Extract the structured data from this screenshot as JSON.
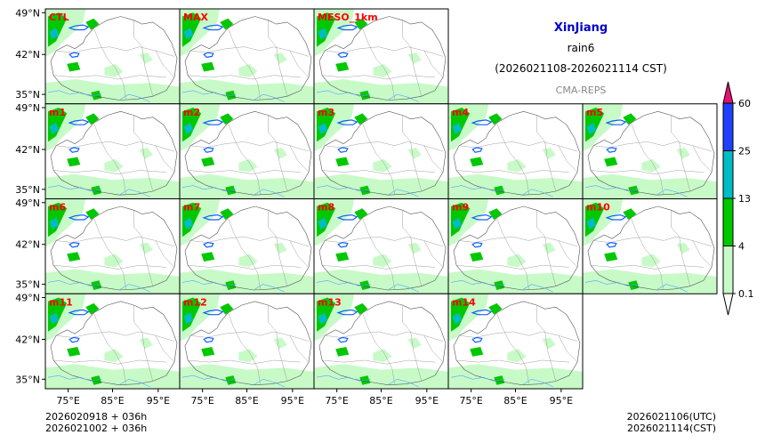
{
  "chart_data": {
    "type": "heatmap",
    "header": {
      "region": "XinJiang",
      "variable": "rain6",
      "period": "(2026021108-2026021114 CST)",
      "system": "CMA-REPS"
    },
    "panels": [
      {
        "label": "CTL"
      },
      {
        "label": "MAX"
      },
      {
        "label": "MESO_1km"
      },
      {
        "label": "m1"
      },
      {
        "label": "m2"
      },
      {
        "label": "m3"
      },
      {
        "label": "m4"
      },
      {
        "label": "m5"
      },
      {
        "label": "m6"
      },
      {
        "label": "m7"
      },
      {
        "label": "m8"
      },
      {
        "label": "m9"
      },
      {
        "label": "m10"
      },
      {
        "label": "m11"
      },
      {
        "label": "m12"
      },
      {
        "label": "m13"
      },
      {
        "label": "m14"
      }
    ],
    "y_ticks": [
      "49°N",
      "42°N",
      "35°N"
    ],
    "x_ticks": [
      "75°E",
      "85°E",
      "95°E"
    ],
    "colorbar": {
      "levels": [
        "0.1",
        "4",
        "13",
        "25",
        "60"
      ],
      "colors": [
        "#c8fac8",
        "#00c800",
        "#00bcc4",
        "#2040ff"
      ],
      "over_color": "#e8106e",
      "under_color": "#ffffff"
    },
    "footer": {
      "init_line": "2026020918  +  036h",
      "valid_line": "2026021002  +  036h",
      "utc": "2026021106(UTC)",
      "cst": "2026021114(CST)"
    }
  }
}
